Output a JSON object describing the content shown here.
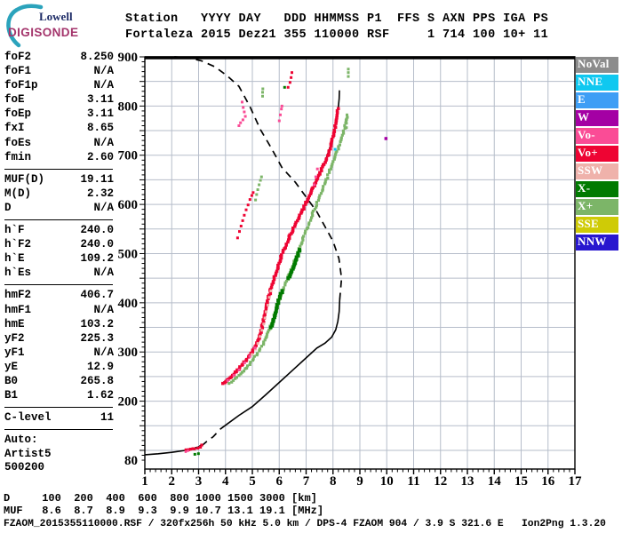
{
  "logo": {
    "top": "Lowell",
    "bottom": "DIGISONDE"
  },
  "header": {
    "line1": "Station   YYYY DAY   DDD HHMMSS P1  FFS S AXN PPS IGA PS",
    "line2": "Fortaleza 2015 Dez21 355 110000 RSF     1 714 100 10+ 11"
  },
  "params": {
    "sections": [
      {
        "rows": [
          {
            "label": "foF2",
            "value": "8.250"
          },
          {
            "label": "foF1",
            "value": "N/A"
          },
          {
            "label": "foF1p",
            "value": "N/A"
          },
          {
            "label": "foE",
            "value": "3.11"
          },
          {
            "label": "foEp",
            "value": "3.11"
          },
          {
            "label": "fxI",
            "value": "8.65"
          },
          {
            "label": "foEs",
            "value": "N/A"
          },
          {
            "label": "fmin",
            "value": "2.60"
          }
        ]
      },
      {
        "rows": [
          {
            "label": "MUF(D)",
            "value": "19.11"
          },
          {
            "label": "M(D)",
            "value": "2.32"
          },
          {
            "label": "D",
            "value": "N/A"
          }
        ]
      },
      {
        "rows": [
          {
            "label": "h`F",
            "value": "240.0"
          },
          {
            "label": "h`F2",
            "value": "240.0"
          },
          {
            "label": "h`E",
            "value": "109.2"
          },
          {
            "label": "h`Es",
            "value": "N/A"
          }
        ]
      },
      {
        "rows": [
          {
            "label": "hmF2",
            "value": "406.7"
          },
          {
            "label": "hmF1",
            "value": "N/A"
          },
          {
            "label": "hmE",
            "value": "103.2"
          },
          {
            "label": "yF2",
            "value": "225.3"
          },
          {
            "label": "yF1",
            "value": "N/A"
          },
          {
            "label": "yE",
            "value": "12.9"
          },
          {
            "label": "B0",
            "value": "265.8"
          },
          {
            "label": "B1",
            "value": "1.62"
          }
        ]
      },
      {
        "rows": [
          {
            "label": "C-level",
            "value": "11"
          }
        ]
      }
    ],
    "auto_block": [
      "Auto:",
      "Artist5",
      "500200"
    ]
  },
  "colors": {
    "NoVal": "#8C8C8C",
    "NNE": "#0FC8F0",
    "E": "#3E9EF5",
    "W": "#A400A4",
    "Vo-": "#FA4C96",
    "Vo+": "#EE0433",
    "SSW": "#EFB2AB",
    "X-": "#007A00",
    "X+": "#7CB568",
    "SSE": "#CFCB06",
    "NNW": "#2817CF",
    "black": "#000000",
    "grid": "#B6BDCA"
  },
  "legend": {
    "items": [
      {
        "label": "NoVal",
        "color": "NoVal"
      },
      {
        "label": "NNE",
        "color": "NNE"
      },
      {
        "label": "E",
        "color": "E"
      },
      {
        "label": "W",
        "color": "W"
      },
      {
        "label": "Vo-",
        "color": "Vo-"
      },
      {
        "label": "Vo+",
        "color": "Vo+"
      },
      {
        "label": "SSW",
        "color": "SSW"
      },
      {
        "label": "X-",
        "color": "X-"
      },
      {
        "label": "X+",
        "color": "X+"
      },
      {
        "label": "SSE",
        "color": "SSE"
      },
      {
        "label": "NNW",
        "color": "NNW"
      }
    ]
  },
  "chart_data": {
    "type": "scatter",
    "title": "Fortaleza ionogram 2015 Dez21 355 110000 RSF",
    "xlabel": "",
    "ylabel": "",
    "xlim": [
      1,
      17
    ],
    "ylim": [
      60,
      900
    ],
    "grid": true,
    "x_ticks": [
      1,
      2,
      3,
      4,
      5,
      6,
      7,
      8,
      9,
      10,
      11,
      12,
      13,
      14,
      15,
      16,
      17
    ],
    "x_minor_step": 0.2,
    "y_tick_labels": [
      900,
      800,
      700,
      600,
      500,
      400,
      300,
      200,
      80
    ],
    "y_grid_step": 50,
    "y_minor_step": 10,
    "series": [
      {
        "name": "profile-valley-dashed",
        "style": "dash",
        "color": "black",
        "points": [
          [
            3.11,
            109
          ],
          [
            3.3,
            118
          ],
          [
            3.55,
            128
          ],
          [
            3.8,
            143
          ]
        ]
      },
      {
        "name": "profile-topside-dashed",
        "style": "dash",
        "color": "black",
        "points": [
          [
            8.25,
            406
          ],
          [
            8.32,
            450
          ],
          [
            8.22,
            490
          ],
          [
            8.0,
            525
          ],
          [
            7.7,
            555
          ],
          [
            7.4,
            585
          ],
          [
            7.0,
            615
          ],
          [
            6.6,
            645
          ],
          [
            6.1,
            675
          ],
          [
            5.7,
            715
          ],
          [
            5.3,
            752
          ],
          [
            4.9,
            800
          ],
          [
            4.5,
            840
          ],
          [
            4.05,
            862
          ],
          [
            3.6,
            880
          ],
          [
            3.1,
            892
          ],
          [
            2.6,
            898
          ],
          [
            2.1,
            900
          ]
        ]
      },
      {
        "name": "profile-E-bottomside",
        "style": "line",
        "color": "black",
        "points": [
          [
            1.0,
            91
          ],
          [
            1.5,
            93
          ],
          [
            2.0,
            96
          ],
          [
            2.5,
            100
          ],
          [
            2.85,
            104
          ],
          [
            3.05,
            107
          ],
          [
            3.11,
            109
          ]
        ]
      },
      {
        "name": "profile-F-bottomside",
        "style": "line",
        "color": "black",
        "points": [
          [
            3.8,
            143
          ],
          [
            4.0,
            151
          ],
          [
            4.5,
            171
          ],
          [
            5.0,
            189
          ],
          [
            5.5,
            213
          ],
          [
            6.0,
            238
          ],
          [
            6.5,
            263
          ],
          [
            7.0,
            288
          ],
          [
            7.4,
            308
          ],
          [
            7.7,
            318
          ],
          [
            7.95,
            330
          ],
          [
            8.1,
            345
          ],
          [
            8.18,
            362
          ],
          [
            8.23,
            382
          ],
          [
            8.25,
            406
          ]
        ]
      },
      {
        "name": "F-trace-fitted-line",
        "style": "line",
        "color": "black",
        "points": [
          [
            3.9,
            237
          ],
          [
            4.2,
            250
          ],
          [
            4.5,
            266
          ],
          [
            4.8,
            286
          ],
          [
            5.1,
            310
          ],
          [
            5.32,
            340
          ],
          [
            5.52,
            392
          ],
          [
            5.8,
            448
          ],
          [
            6.1,
            498
          ],
          [
            6.5,
            548
          ],
          [
            6.9,
            592
          ],
          [
            7.3,
            638
          ],
          [
            7.7,
            686
          ],
          [
            7.95,
            726
          ],
          [
            8.12,
            768
          ],
          [
            8.2,
            798
          ],
          [
            8.23,
            815
          ],
          [
            8.24,
            832
          ]
        ]
      },
      {
        "name": "E-trace-fitted-line",
        "style": "line",
        "color": "black",
        "points": [
          [
            2.5,
            101
          ],
          [
            2.8,
            104
          ],
          [
            3.0,
            107
          ],
          [
            3.12,
            112
          ]
        ]
      },
      {
        "name": "F-trace-O-mode",
        "style": "dots",
        "color": "Vo+",
        "size": 3.5,
        "step": 2.2,
        "points": [
          [
            3.92,
            236
          ],
          [
            4.05,
            243
          ],
          [
            4.2,
            250
          ],
          [
            4.35,
            258
          ],
          [
            4.5,
            266
          ],
          [
            4.65,
            275
          ],
          [
            4.8,
            286
          ],
          [
            4.95,
            297
          ],
          [
            5.1,
            310
          ],
          [
            5.22,
            322
          ],
          [
            5.32,
            340
          ],
          [
            5.42,
            365
          ],
          [
            5.52,
            392
          ],
          [
            5.65,
            420
          ],
          [
            5.8,
            448
          ],
          [
            5.95,
            472
          ],
          [
            6.1,
            498
          ],
          [
            6.3,
            524
          ],
          [
            6.5,
            548
          ],
          [
            6.7,
            570
          ],
          [
            6.9,
            592
          ],
          [
            7.1,
            614
          ],
          [
            7.3,
            638
          ],
          [
            7.5,
            662
          ],
          [
            7.7,
            686
          ],
          [
            7.85,
            706
          ],
          [
            7.95,
            726
          ],
          [
            8.05,
            748
          ],
          [
            8.12,
            768
          ],
          [
            8.17,
            785
          ],
          [
            8.2,
            798
          ]
        ]
      },
      {
        "name": "F-trace-SSW-edge",
        "style": "dots",
        "color": "SSW",
        "size": 3,
        "step": 7,
        "points": [
          [
            5.0,
            295
          ],
          [
            5.2,
            318
          ],
          [
            5.35,
            345
          ],
          [
            5.5,
            382
          ],
          [
            5.62,
            410
          ],
          [
            5.75,
            440
          ]
        ]
      },
      {
        "name": "F-trace-Vo-minus-edge",
        "style": "dots",
        "color": "Vo-",
        "size": 3,
        "step": 9,
        "points": [
          [
            4.1,
            242
          ],
          [
            4.5,
            264
          ],
          [
            4.9,
            292
          ],
          [
            5.25,
            325
          ]
        ]
      },
      {
        "name": "F-trace-X-mode",
        "style": "dots",
        "color": "X+",
        "size": 3.2,
        "step": 2.6,
        "points": [
          [
            4.15,
            236
          ],
          [
            4.35,
            246
          ],
          [
            4.55,
            256
          ],
          [
            4.78,
            268
          ],
          [
            5.0,
            282
          ],
          [
            5.2,
            298
          ],
          [
            5.4,
            316
          ],
          [
            5.6,
            340
          ],
          [
            5.8,
            370
          ],
          [
            6.0,
            405
          ],
          [
            6.25,
            440
          ],
          [
            6.5,
            475
          ],
          [
            6.75,
            510
          ],
          [
            6.95,
            540
          ],
          [
            7.15,
            568
          ],
          [
            7.35,
            595
          ],
          [
            7.55,
            622
          ],
          [
            7.75,
            650
          ],
          [
            7.95,
            678
          ],
          [
            8.1,
            700
          ],
          [
            8.25,
            722
          ],
          [
            8.38,
            745
          ],
          [
            8.48,
            765
          ],
          [
            8.53,
            782
          ]
        ]
      },
      {
        "name": "X-minus-segment-low",
        "style": "dots",
        "color": "X-",
        "size": 4,
        "step": 2.4,
        "points": [
          [
            5.7,
            350
          ],
          [
            5.95,
            400
          ],
          [
            6.15,
            430
          ]
        ]
      },
      {
        "name": "X-minus-segment-mid",
        "style": "dots",
        "color": "X-",
        "size": 4,
        "step": 2.4,
        "points": [
          [
            6.35,
            450
          ],
          [
            6.6,
            485
          ],
          [
            6.8,
            512
          ]
        ]
      },
      {
        "name": "E-trace-O-mode",
        "style": "dots",
        "color": "Vo+",
        "size": 3.2,
        "step": 2.4,
        "points": [
          [
            2.55,
            101
          ],
          [
            2.7,
            103
          ],
          [
            2.85,
            104
          ],
          [
            2.95,
            105
          ],
          [
            3.05,
            107
          ],
          [
            3.1,
            111
          ],
          [
            3.13,
            116
          ]
        ]
      },
      {
        "name": "E-trace-X-minus",
        "style": "dots",
        "color": "X-",
        "size": 3,
        "step": 3,
        "points": [
          [
            2.88,
            92
          ],
          [
            2.98,
            94
          ],
          [
            3.06,
            96
          ]
        ]
      }
    ],
    "scatter": [
      {
        "name": "spread-red-streak",
        "color": "Vo+",
        "size": 3,
        "points": [
          [
            4.45,
            532
          ],
          [
            4.52,
            545
          ],
          [
            4.58,
            556
          ],
          [
            4.64,
            567
          ],
          [
            4.7,
            578
          ],
          [
            4.77,
            589
          ],
          [
            4.84,
            599
          ],
          [
            4.91,
            610
          ],
          [
            4.98,
            618
          ],
          [
            5.03,
            624
          ]
        ]
      },
      {
        "name": "spread-green-streak",
        "color": "X+",
        "size": 3,
        "points": [
          [
            5.12,
            609
          ],
          [
            5.16,
            620
          ],
          [
            5.2,
            630
          ],
          [
            5.25,
            640
          ],
          [
            5.3,
            649
          ],
          [
            5.34,
            656
          ]
        ]
      },
      {
        "name": "pink-cluster-high",
        "color": "Vo-",
        "size": 3,
        "points": [
          [
            4.62,
            808
          ],
          [
            4.66,
            797
          ],
          [
            4.7,
            788
          ],
          [
            4.74,
            779
          ],
          [
            4.65,
            772
          ],
          [
            4.56,
            766
          ],
          [
            4.5,
            760
          ]
        ]
      },
      {
        "name": "pink-specks-790",
        "color": "Vo-",
        "size": 3,
        "points": [
          [
            6.0,
            770
          ],
          [
            6.04,
            782
          ],
          [
            6.08,
            794
          ],
          [
            6.1,
            800
          ]
        ]
      },
      {
        "name": "red-specks-860",
        "color": "Vo+",
        "size": 3,
        "points": [
          [
            6.4,
            848
          ],
          [
            6.44,
            858
          ],
          [
            6.47,
            868
          ]
        ]
      },
      {
        "name": "green-speck-838",
        "color": "X-",
        "size": 3,
        "points": [
          [
            6.2,
            838
          ]
        ]
      },
      {
        "name": "red-speck-838",
        "color": "Vo+",
        "size": 3,
        "points": [
          [
            6.33,
            838
          ]
        ]
      },
      {
        "name": "green-dashes-825",
        "color": "X+",
        "size": 3,
        "points": [
          [
            5.38,
            820
          ],
          [
            5.38,
            828
          ],
          [
            5.39,
            835
          ]
        ]
      },
      {
        "name": "x-upper-dashes",
        "color": "X+",
        "size": 3,
        "points": [
          [
            8.5,
            756
          ],
          [
            8.5,
            765
          ],
          [
            8.51,
            774
          ],
          [
            8.52,
            782
          ]
        ]
      },
      {
        "name": "x-top-dash",
        "color": "X+",
        "size": 3,
        "points": [
          [
            8.57,
            860
          ],
          [
            8.57,
            868
          ],
          [
            8.57,
            875
          ]
        ]
      },
      {
        "name": "pink-near-cusp",
        "color": "Vo-",
        "size": 3,
        "points": [
          [
            7.3,
            640
          ],
          [
            7.36,
            656
          ],
          [
            7.42,
            672
          ]
        ]
      },
      {
        "name": "pink-specks-E",
        "color": "Vo-",
        "size": 2.6,
        "points": [
          [
            2.52,
            97
          ],
          [
            2.6,
            99
          ]
        ]
      },
      {
        "name": "cyan-speck",
        "color": "NNE",
        "size": 3,
        "points": [
          [
            8.08,
            712
          ]
        ]
      },
      {
        "name": "w-dot",
        "color": "W",
        "size": 3.5,
        "points": [
          [
            9.97,
            734
          ]
        ]
      }
    ]
  },
  "footer": {
    "d_row": "D     100  200  400  600  800 1000 1500 3000 [km]",
    "muf_row": "MUF   8.6  8.7  8.9  9.3  9.9 10.7 13.1 19.1 [MHz]",
    "status": "FZAOM_2015355110000.RSF / 320fx256h 50 kHz 5.0 km / DPS-4 FZAOM 904 / 3.9 S 321.6 E   Ion2Png 1.3.20"
  }
}
